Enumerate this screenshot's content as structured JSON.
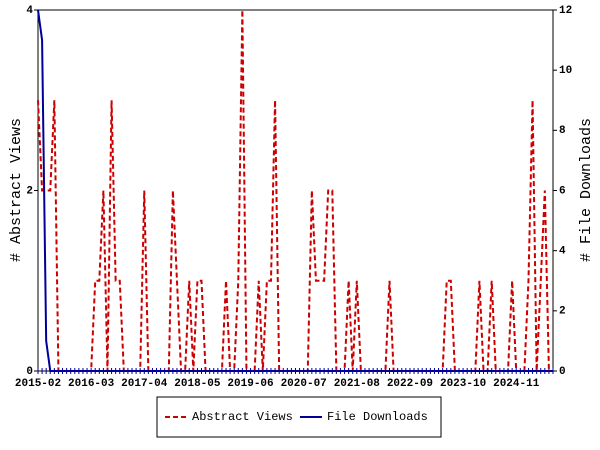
{
  "chart_data": {
    "type": "line",
    "ylabel": "# Abstract Views",
    "y2label": "# File Downloads",
    "categories": [
      "2015-02",
      null,
      null,
      null,
      null,
      null,
      null,
      null,
      null,
      null,
      null,
      null,
      null,
      "2016-03",
      null,
      null,
      null,
      null,
      null,
      null,
      null,
      null,
      null,
      null,
      null,
      null,
      "2017-04",
      null,
      null,
      null,
      null,
      null,
      null,
      null,
      null,
      null,
      null,
      null,
      null,
      "2018-05",
      null,
      null,
      null,
      null,
      null,
      null,
      null,
      null,
      null,
      null,
      null,
      null,
      "2019-06",
      null,
      null,
      null,
      null,
      null,
      null,
      null,
      null,
      null,
      null,
      null,
      null,
      "2020-07",
      null,
      null,
      null,
      null,
      null,
      null,
      null,
      null,
      null,
      null,
      null,
      null,
      "2021-08",
      null,
      null,
      null,
      null,
      null,
      null,
      null,
      null,
      null,
      null,
      null,
      null,
      "2022-09",
      null,
      null,
      null,
      null,
      null,
      null,
      null,
      null,
      null,
      null,
      null,
      null,
      "2023-10",
      null,
      null,
      null,
      null,
      null,
      null,
      null,
      null,
      null,
      null,
      null,
      null,
      "2024-11",
      null,
      null,
      null,
      null,
      null,
      null,
      null,
      null,
      null
    ],
    "series": [
      {
        "name": "Abstract Views",
        "color": "#cc0000",
        "dash": true,
        "axis": "y",
        "values": [
          3,
          2,
          2,
          2,
          3,
          0,
          0,
          0,
          0,
          0,
          0,
          0,
          0,
          0,
          1,
          1,
          2,
          0,
          3,
          1,
          1,
          0,
          0,
          0,
          0,
          0,
          2,
          0,
          0,
          0,
          0,
          0,
          0,
          2,
          1,
          0,
          0,
          1,
          0,
          1,
          1,
          0,
          0,
          0,
          0,
          0,
          1,
          0,
          0,
          1,
          4,
          0,
          0,
          0,
          1,
          0,
          1,
          1,
          3,
          0,
          0,
          0,
          0,
          0,
          0,
          0,
          0,
          2,
          1,
          1,
          1,
          2,
          2,
          0,
          0,
          0,
          1,
          0,
          1,
          0,
          0,
          0,
          0,
          0,
          0,
          0,
          1,
          0,
          0,
          0,
          0,
          0,
          0,
          0,
          0,
          0,
          0,
          0,
          0,
          0,
          1,
          1,
          0,
          0,
          0,
          0,
          0,
          0,
          1,
          0,
          0,
          1,
          0,
          0,
          0,
          0,
          1,
          0,
          0,
          0,
          1,
          3,
          0,
          1,
          2,
          0,
          0
        ]
      },
      {
        "name": "File Downloads",
        "color": "#000099",
        "dash": false,
        "axis": "y2",
        "values": [
          12,
          11,
          1,
          0,
          0,
          0,
          0,
          0,
          0,
          0,
          0,
          0,
          0,
          0,
          0,
          0,
          0,
          0,
          0,
          0,
          0,
          0,
          0,
          0,
          0,
          0,
          0,
          0,
          0,
          0,
          0,
          0,
          0,
          0,
          0,
          0,
          0,
          0,
          0,
          0,
          0,
          0,
          0,
          0,
          0,
          0,
          0,
          0,
          0,
          0,
          0,
          0,
          0,
          0,
          0,
          0,
          0,
          0,
          0,
          0,
          0,
          0,
          0,
          0,
          0,
          0,
          0,
          0,
          0,
          0,
          0,
          0,
          0,
          0,
          0,
          0,
          0,
          0,
          0,
          0,
          0,
          0,
          0,
          0,
          0,
          0,
          0,
          0,
          0,
          0,
          0,
          0,
          0,
          0,
          0,
          0,
          0,
          0,
          0,
          0,
          0,
          0,
          0,
          0,
          0,
          0,
          0,
          0,
          0,
          0,
          0,
          0,
          0,
          0,
          0,
          0,
          0,
          0,
          0,
          0,
          0,
          0,
          0,
          0,
          0,
          0,
          0
        ]
      }
    ],
    "ylim": [
      0,
      4
    ],
    "yticks": [
      0,
      2,
      4
    ],
    "y2lim": [
      0,
      12
    ],
    "y2ticks": [
      0,
      2,
      4,
      6,
      8,
      10,
      12
    ],
    "legend": "bottom"
  }
}
